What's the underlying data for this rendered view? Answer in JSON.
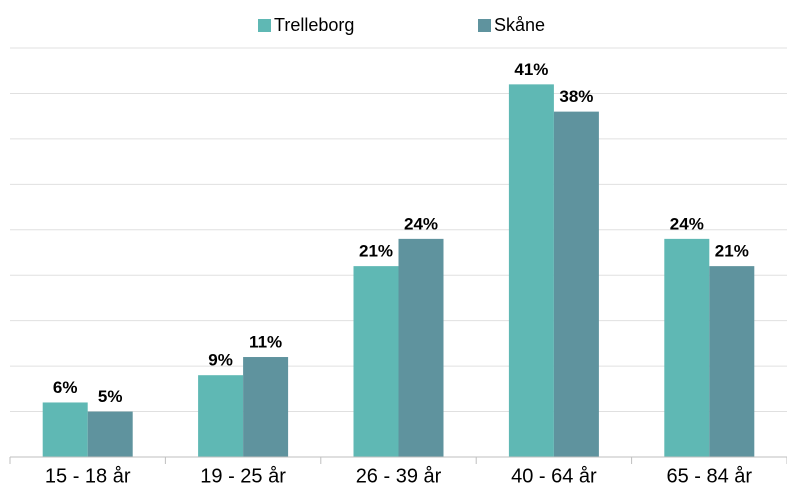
{
  "chart_data": {
    "type": "bar",
    "categories": [
      "15 - 18 år",
      "19 - 25 år",
      "26 - 39 år",
      "40 - 64 år",
      "65 - 84 år"
    ],
    "series": [
      {
        "name": "Trelleborg",
        "color": "#5fb8b4",
        "values": [
          6,
          9,
          21,
          41,
          24
        ],
        "value_labels": [
          "6%",
          "9%",
          "21%",
          "41%",
          "24%"
        ]
      },
      {
        "name": "Skåne",
        "color": "#5f939e",
        "values": [
          5,
          11,
          24,
          38,
          21
        ],
        "value_labels": [
          "5%",
          "11%",
          "24%",
          "38%",
          "21%"
        ]
      }
    ],
    "ylim": [
      0,
      45
    ],
    "yticks": [
      0,
      5,
      10,
      15,
      20,
      25,
      30,
      35,
      40,
      45
    ],
    "grid": true,
    "legend": "top"
  }
}
